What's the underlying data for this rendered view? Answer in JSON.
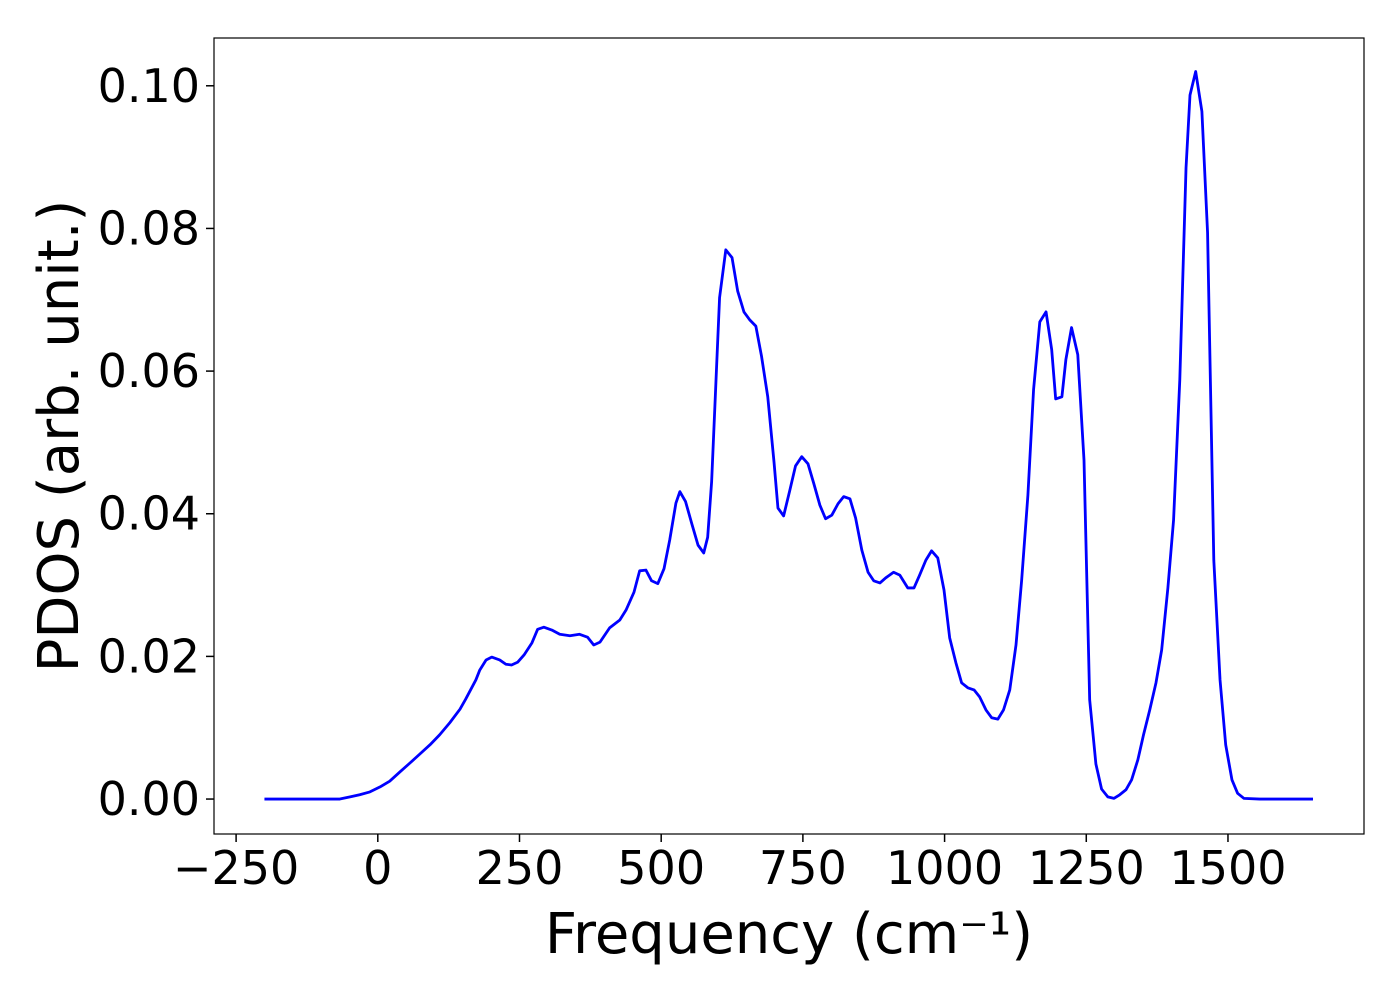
{
  "chart_data": {
    "type": "line",
    "xlabel": "Frequency (cm⁻¹)",
    "ylabel": "PDOS (arb. unit.)",
    "color": "#0000ff",
    "xlim": [
      -289,
      1740
    ],
    "ylim": [
      -0.0049,
      0.1067
    ],
    "xticks": [
      {
        "value": -250,
        "label": "−250"
      },
      0,
      250,
      500,
      750,
      1000,
      1250,
      1500
    ],
    "yticks": [
      {
        "value": 0,
        "label": "0.00"
      },
      {
        "value": 0.02,
        "label": "0.02"
      },
      {
        "value": 0.04,
        "label": "0.04"
      },
      {
        "value": 0.06,
        "label": "0.06"
      },
      {
        "value": 0.08,
        "label": "0.08"
      },
      {
        "value": 0.1,
        "label": "0.10"
      }
    ],
    "x": [
      -200,
      -67,
      -49,
      -32,
      -14,
      4,
      21,
      39,
      56,
      74,
      92,
      109,
      127,
      145,
      155,
      173,
      180,
      191,
      201,
      215,
      226,
      236,
      247,
      258,
      272,
      282,
      293,
      307,
      321,
      339,
      356,
      370,
      381,
      392,
      409,
      427,
      438,
      452,
      462,
      473,
      483,
      494,
      505,
      515,
      526,
      533,
      543,
      554,
      565,
      575,
      582,
      589,
      596,
      603,
      614,
      625,
      635,
      646,
      656,
      667,
      677,
      688,
      699,
      706,
      716,
      727,
      737,
      748,
      759,
      769,
      780,
      790,
      801,
      812,
      822,
      833,
      843,
      854,
      865,
      875,
      886,
      896,
      910,
      921,
      935,
      946,
      956,
      967,
      977,
      988,
      999,
      1009,
      1020,
      1030,
      1041,
      1052,
      1062,
      1073,
      1083,
      1094,
      1104,
      1115,
      1126,
      1136,
      1147,
      1157,
      1168,
      1179,
      1189,
      1196,
      1207,
      1214,
      1224,
      1235,
      1246,
      1256,
      1267,
      1277,
      1288,
      1299,
      1309,
      1320,
      1330,
      1341,
      1351,
      1362,
      1373,
      1383,
      1394,
      1404,
      1415,
      1426,
      1433,
      1443,
      1454,
      1464,
      1475,
      1486,
      1496,
      1507,
      1517,
      1528,
      1556,
      1650
    ],
    "values": [
      0,
      0,
      0.0003,
      0.0006,
      0.001,
      0.0017,
      0.0025,
      0.0038,
      0.005,
      0.0063,
      0.0076,
      0.009,
      0.0107,
      0.0126,
      0.014,
      0.0167,
      0.0181,
      0.0195,
      0.0199,
      0.0195,
      0.0189,
      0.0188,
      0.0192,
      0.0202,
      0.0219,
      0.0238,
      0.0241,
      0.0237,
      0.0231,
      0.0229,
      0.0231,
      0.0227,
      0.0216,
      0.022,
      0.024,
      0.0251,
      0.0265,
      0.029,
      0.032,
      0.0321,
      0.0306,
      0.0302,
      0.0323,
      0.0363,
      0.0415,
      0.0431,
      0.0417,
      0.0386,
      0.0356,
      0.0345,
      0.0367,
      0.0445,
      0.0574,
      0.0703,
      0.077,
      0.0759,
      0.0712,
      0.0683,
      0.0672,
      0.0663,
      0.0621,
      0.0564,
      0.0473,
      0.0408,
      0.0397,
      0.0433,
      0.0467,
      0.048,
      0.047,
      0.0443,
      0.0412,
      0.0393,
      0.0398,
      0.0414,
      0.0424,
      0.0421,
      0.0394,
      0.0349,
      0.0318,
      0.0306,
      0.0303,
      0.031,
      0.0318,
      0.0314,
      0.0296,
      0.0296,
      0.0314,
      0.0335,
      0.0348,
      0.0338,
      0.0293,
      0.0226,
      0.0191,
      0.0163,
      0.0156,
      0.0153,
      0.0143,
      0.0125,
      0.0114,
      0.0112,
      0.0125,
      0.0153,
      0.0216,
      0.0307,
      0.0426,
      0.0574,
      0.0669,
      0.0683,
      0.063,
      0.0561,
      0.0564,
      0.0616,
      0.0661,
      0.0623,
      0.0475,
      0.0139,
      0.0049,
      0.0014,
      0.0003,
      0.0001,
      0.0006,
      0.0013,
      0.0027,
      0.0055,
      0.009,
      0.0125,
      0.0163,
      0.0209,
      0.0296,
      0.0391,
      0.0588,
      0.0885,
      0.0987,
      0.102,
      0.0964,
      0.0794,
      0.0335,
      0.0167,
      0.0076,
      0.0027,
      0.0008,
      0.0001,
      0,
      0
    ]
  }
}
